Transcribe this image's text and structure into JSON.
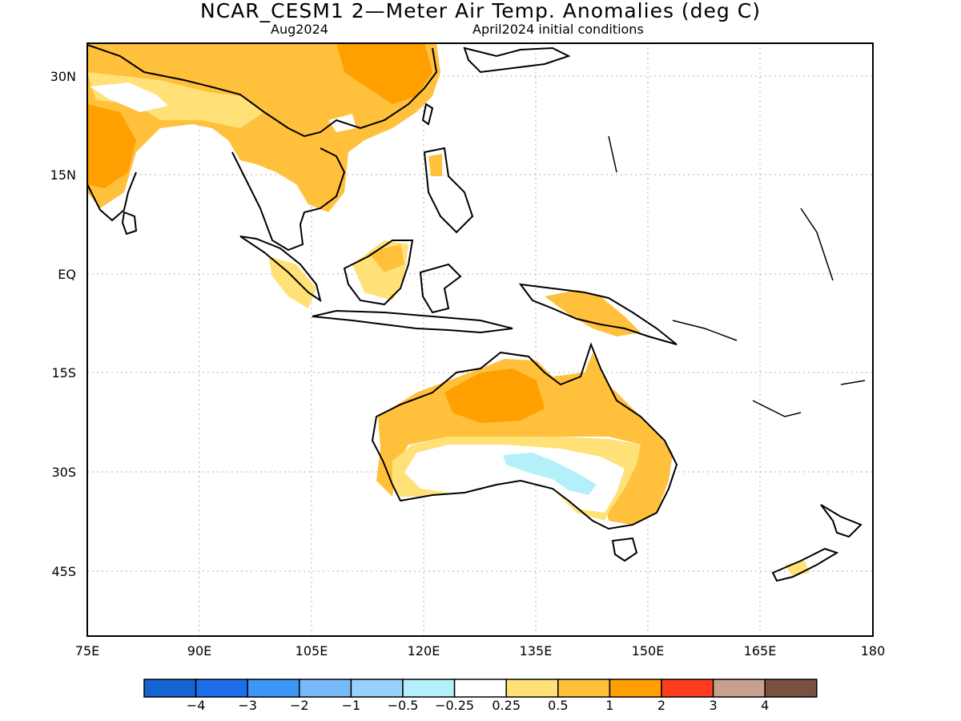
{
  "title": "NCAR_CESM1 2—Meter Air Temp. Anomalies (deg C)",
  "subtitle_left": "Aug2024",
  "subtitle_right": "April2024 initial conditions",
  "axes": {
    "y_ticks": [
      "30N",
      "15N",
      "EQ",
      "15S",
      "30S",
      "45S"
    ],
    "x_ticks": [
      "75E",
      "90E",
      "105E",
      "120E",
      "135E",
      "150E",
      "165E",
      "180"
    ],
    "lon_range": [
      75,
      180
    ],
    "lat_range": [
      -55,
      35
    ],
    "grid": "dotted"
  },
  "colorbar": {
    "colors": [
      "#1464d2",
      "#1e6eeb",
      "#3c96f5",
      "#78b9fa",
      "#96d2fa",
      "#b4f0fa",
      "#ffffff",
      "#ffe178",
      "#ffc03c",
      "#ffa000",
      "#ff3c1e",
      "#c8a090",
      "#7a5040"
    ],
    "labels": [
      "−4",
      "−3",
      "−2",
      "−1",
      "−0.5",
      "−0.25",
      "0.25",
      "0.5",
      "1",
      "2",
      "3",
      "4"
    ]
  },
  "map_data": {
    "type": "shaded-anomaly-map",
    "variable": "2-meter air temperature anomaly",
    "units": "deg C"
  }
}
